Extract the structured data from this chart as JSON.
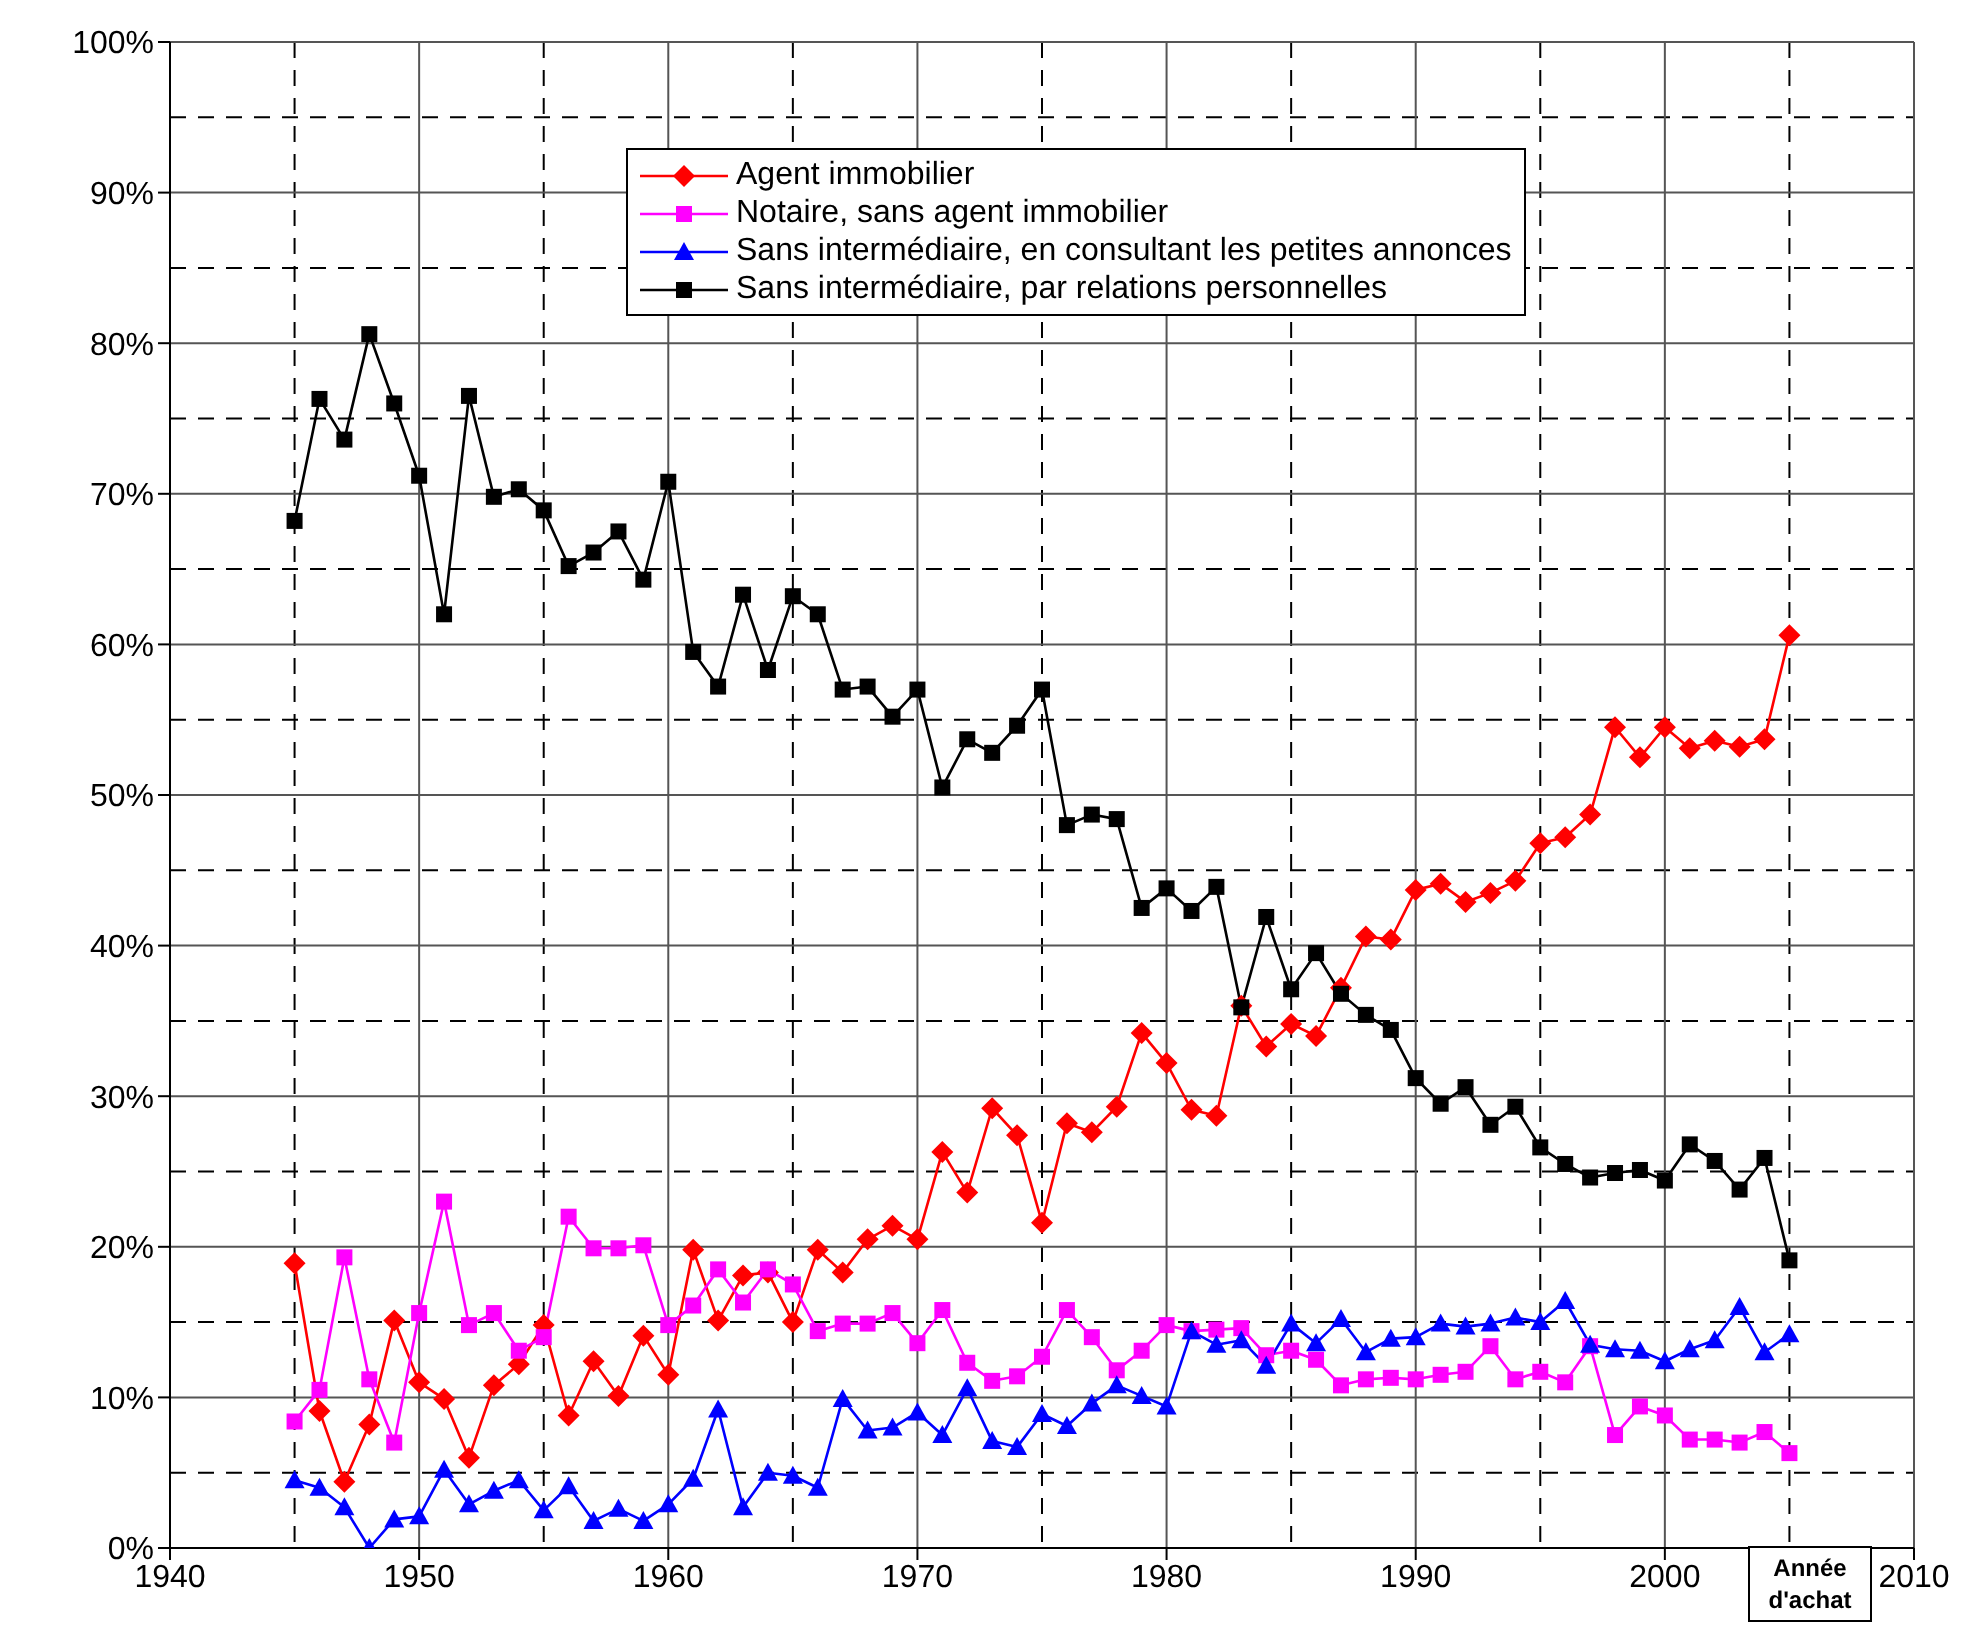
{
  "chart_data": {
    "type": "line",
    "x": [
      1945,
      1946,
      1947,
      1948,
      1949,
      1950,
      1951,
      1952,
      1953,
      1954,
      1955,
      1956,
      1957,
      1958,
      1959,
      1960,
      1961,
      1962,
      1963,
      1964,
      1965,
      1966,
      1967,
      1968,
      1969,
      1970,
      1971,
      1972,
      1973,
      1974,
      1975,
      1976,
      1977,
      1978,
      1979,
      1980,
      1981,
      1982,
      1983,
      1984,
      1985,
      1986,
      1987,
      1988,
      1989,
      1990,
      1991,
      1992,
      1993,
      1994,
      1995,
      1996,
      1997,
      1998,
      1999,
      2000,
      2001,
      2002,
      2003,
      2004,
      2005
    ],
    "series": [
      {
        "name": "Agent immobilier",
        "color": "#ff0000",
        "marker": "diamond",
        "values": [
          18.9,
          9.1,
          4.4,
          8.2,
          15.1,
          11,
          9.9,
          6,
          10.8,
          12.2,
          14.8,
          8.8,
          12.4,
          10.1,
          14.1,
          11.5,
          19.8,
          15.1,
          18.1,
          18.3,
          15,
          19.8,
          18.3,
          20.5,
          21.4,
          20.5,
          26.3,
          23.6,
          29.2,
          27.4,
          21.6,
          28.2,
          27.6,
          29.3,
          34.2,
          32.2,
          29.1,
          28.7,
          36,
          33.3,
          34.8,
          34,
          37.2,
          40.6,
          40.4,
          43.7,
          44.1,
          42.9,
          43.5,
          44.3,
          46.8,
          47.2,
          48.7,
          54.5,
          52.5,
          54.5,
          53.1,
          53.6,
          53.2,
          53.7,
          60.6
        ]
      },
      {
        "name": "Notaire, sans agent immobilier",
        "color": "#ff00ff",
        "marker": "square",
        "values": [
          8.4,
          10.5,
          19.3,
          11.2,
          7,
          15.6,
          23,
          14.8,
          15.6,
          13.1,
          14,
          22,
          19.9,
          19.9,
          20.1,
          14.8,
          16.1,
          18.5,
          16.3,
          18.5,
          17.5,
          14.4,
          14.9,
          14.9,
          15.6,
          13.6,
          15.8,
          12.3,
          11.1,
          11.4,
          12.7,
          15.8,
          14,
          11.8,
          13.1,
          14.8,
          14.4,
          14.5,
          14.6,
          12.8,
          13.1,
          12.5,
          10.8,
          11.2,
          11.3,
          11.2,
          11.5,
          11.7,
          13.4,
          11.2,
          11.7,
          11,
          13.4,
          7.5,
          9.4,
          8.8,
          7.2,
          7.2,
          7,
          7.7,
          6.3
        ]
      },
      {
        "name": "Sans intermédiaire, en consultant les petites annonces",
        "color": "#0000ff",
        "marker": "triangle",
        "values": [
          4.5,
          4,
          2.7,
          0,
          1.9,
          2.1,
          5.2,
          2.9,
          3.8,
          4.5,
          2.5,
          4.1,
          1.8,
          2.6,
          1.8,
          2.9,
          4.6,
          9.2,
          2.7,
          5,
          4.8,
          4,
          9.9,
          7.8,
          8,
          9,
          7.5,
          10.6,
          7.1,
          6.7,
          8.9,
          8.1,
          9.6,
          10.8,
          10.1,
          9.4,
          14.4,
          13.5,
          13.8,
          12.1,
          14.9,
          13.6,
          15.2,
          13,
          13.9,
          14,
          14.9,
          14.7,
          14.9,
          15.3,
          15,
          16.4,
          13.5,
          13.2,
          13.1,
          12.4,
          13.2,
          13.8,
          16,
          13,
          14.2
        ]
      },
      {
        "name": "Sans intermédiaire, par relations personnelles",
        "color": "#000000",
        "marker": "square",
        "values": [
          68.2,
          76.3,
          73.6,
          80.6,
          76,
          71.2,
          62,
          76.5,
          69.8,
          70.3,
          68.9,
          65.2,
          66.1,
          67.5,
          64.3,
          70.8,
          59.5,
          57.2,
          63.3,
          58.3,
          63.2,
          62,
          57,
          57.2,
          55.2,
          57,
          50.5,
          53.7,
          52.8,
          54.6,
          57,
          48,
          48.7,
          48.4,
          42.5,
          43.8,
          42.3,
          43.9,
          35.9,
          41.9,
          37.1,
          39.5,
          36.8,
          35.4,
          34.4,
          31.2,
          29.5,
          30.6,
          28.1,
          29.3,
          26.6,
          25.5,
          24.6,
          24.9,
          25.1,
          24.4,
          26.8,
          25.7,
          23.8,
          25.9,
          19.1
        ]
      }
    ],
    "xlim": [
      1940,
      2010
    ],
    "xticks": [
      1940,
      1950,
      1960,
      1970,
      1980,
      1990,
      2000,
      2010
    ],
    "ylim": [
      0,
      100
    ],
    "yticks": [
      {
        "value": 0,
        "label": "0%"
      },
      {
        "value": 10,
        "label": "10%"
      },
      {
        "value": 20,
        "label": "20%"
      },
      {
        "value": 30,
        "label": "30%"
      },
      {
        "value": 40,
        "label": "40%"
      },
      {
        "value": 50,
        "label": "50%"
      },
      {
        "value": 60,
        "label": "60%"
      },
      {
        "value": 70,
        "label": "70%"
      },
      {
        "value": 80,
        "label": "80%"
      },
      {
        "value": 90,
        "label": "90%"
      },
      {
        "value": 100,
        "label": "100%"
      }
    ],
    "grid": true,
    "legend": "top",
    "line_style": "solid",
    "annotations": [
      "Année d'achat"
    ]
  }
}
